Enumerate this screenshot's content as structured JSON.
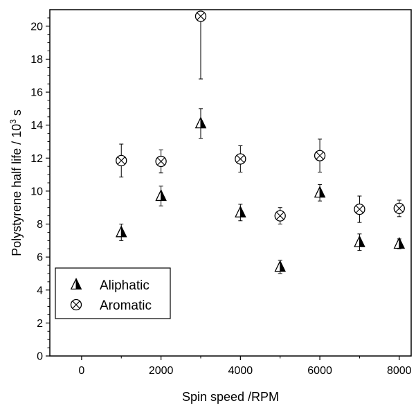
{
  "chart_data": {
    "type": "scatter",
    "xlabel": "Spin speed /RPM",
    "ylabel_main": "Polystyrene half life / 10",
    "ylabel_sup": "3",
    "ylabel_unit": " s",
    "xlim": [
      -800,
      8300
    ],
    "ylim": [
      0,
      21
    ],
    "xticks": [
      0,
      2000,
      4000,
      6000,
      8000
    ],
    "yticks": [
      0,
      2,
      4,
      6,
      8,
      10,
      12,
      14,
      16,
      18,
      20
    ],
    "series": [
      {
        "name": "Aliphatic",
        "marker": "half-filled-triangle",
        "points": [
          {
            "x": 1000,
            "y": 7.5,
            "err_low": 0.5,
            "err_high": 0.5
          },
          {
            "x": 2000,
            "y": 9.7,
            "err_low": 0.6,
            "err_high": 0.6
          },
          {
            "x": 3000,
            "y": 14.1,
            "err_low": 0.9,
            "err_high": 0.9
          },
          {
            "x": 4000,
            "y": 8.7,
            "err_low": 0.5,
            "err_high": 0.5
          },
          {
            "x": 5000,
            "y": 5.4,
            "err_low": 0.4,
            "err_high": 0.4
          },
          {
            "x": 6000,
            "y": 9.9,
            "err_low": 0.5,
            "err_high": 0.5
          },
          {
            "x": 7000,
            "y": 6.9,
            "err_low": 0.5,
            "err_high": 0.5
          },
          {
            "x": 8000,
            "y": 6.8,
            "err_low": 0.3,
            "err_high": 0.3
          }
        ]
      },
      {
        "name": "Aromatic",
        "marker": "circled-x",
        "points": [
          {
            "x": 1000,
            "y": 11.85,
            "err_low": 1.0,
            "err_high": 1.0
          },
          {
            "x": 2000,
            "y": 11.8,
            "err_low": 0.7,
            "err_high": 0.7
          },
          {
            "x": 3000,
            "y": 20.6,
            "err_low": 3.8,
            "err_high": 0.3
          },
          {
            "x": 4000,
            "y": 11.95,
            "err_low": 0.8,
            "err_high": 0.8
          },
          {
            "x": 5000,
            "y": 8.5,
            "err_low": 0.5,
            "err_high": 0.5
          },
          {
            "x": 6000,
            "y": 12.15,
            "err_low": 1.0,
            "err_high": 1.0
          },
          {
            "x": 7000,
            "y": 8.9,
            "err_low": 0.8,
            "err_high": 0.8
          },
          {
            "x": 8000,
            "y": 8.95,
            "err_low": 0.5,
            "err_high": 0.5
          }
        ]
      }
    ],
    "legend": {
      "placement": "lower-left",
      "entries": [
        "Aliphatic",
        "Aromatic"
      ]
    },
    "grid": false
  }
}
